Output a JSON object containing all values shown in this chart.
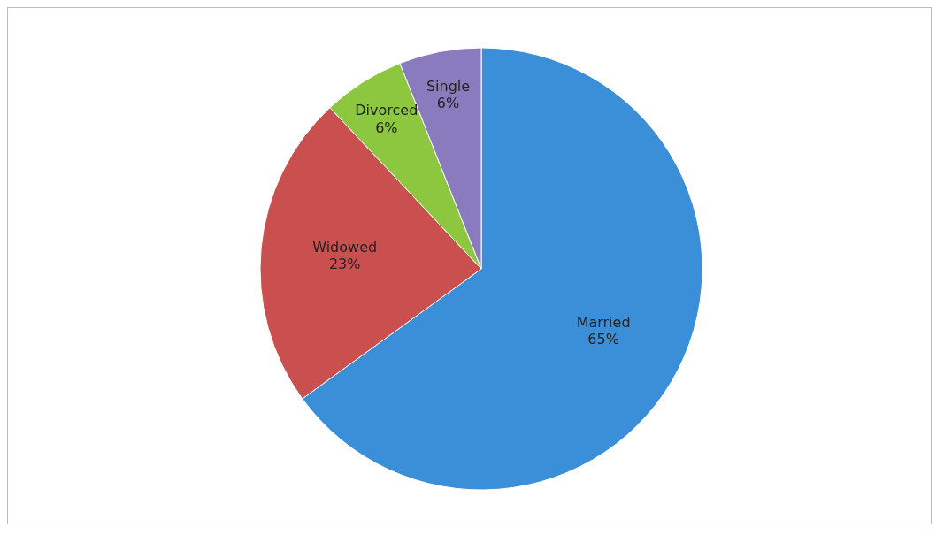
{
  "chart_data": {
    "type": "pie",
    "categories": [
      "Married",
      "Widowed",
      "Divorced",
      "Single"
    ],
    "values": [
      65,
      23,
      6,
      6
    ],
    "colors": [
      "#3a8fd8",
      "#c9504f",
      "#8dc63f",
      "#8a7bbf"
    ],
    "value_labels": [
      "65%",
      "23%",
      "6%",
      "6%"
    ],
    "legend": false
  }
}
